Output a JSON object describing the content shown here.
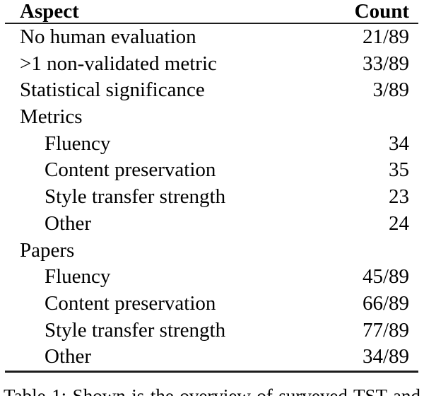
{
  "table": {
    "columns": [
      "Aspect",
      "Count"
    ],
    "rows": [
      {
        "label": "No human evaluation",
        "count": "21/89",
        "indent": 0
      },
      {
        "label": ">1 non-validated metric",
        "count": "33/89",
        "indent": 0
      },
      {
        "label": "Statistical significance",
        "count": "3/89",
        "indent": 0
      },
      {
        "label": "Metrics",
        "count": "",
        "indent": 0
      },
      {
        "label": "Fluency",
        "count": "34",
        "indent": 1
      },
      {
        "label": "Content preservation",
        "count": "35",
        "indent": 1
      },
      {
        "label": "Style transfer strength",
        "count": "23",
        "indent": 1
      },
      {
        "label": "Other",
        "count": "24",
        "indent": 1
      },
      {
        "label": "Papers",
        "count": "",
        "indent": 0
      },
      {
        "label": "Fluency",
        "count": "45/89",
        "indent": 1
      },
      {
        "label": "Content preservation",
        "count": "66/89",
        "indent": 1
      },
      {
        "label": "Style transfer strength",
        "count": "77/89",
        "indent": 1
      },
      {
        "label": "Other",
        "count": "34/89",
        "indent": 1
      }
    ]
  },
  "caption": {
    "text": "Table 1: Shown is the overview of surveyed TST and"
  },
  "colors": {
    "text": "#000000",
    "rule": "#1c1c1c",
    "background": "#ffffff"
  }
}
